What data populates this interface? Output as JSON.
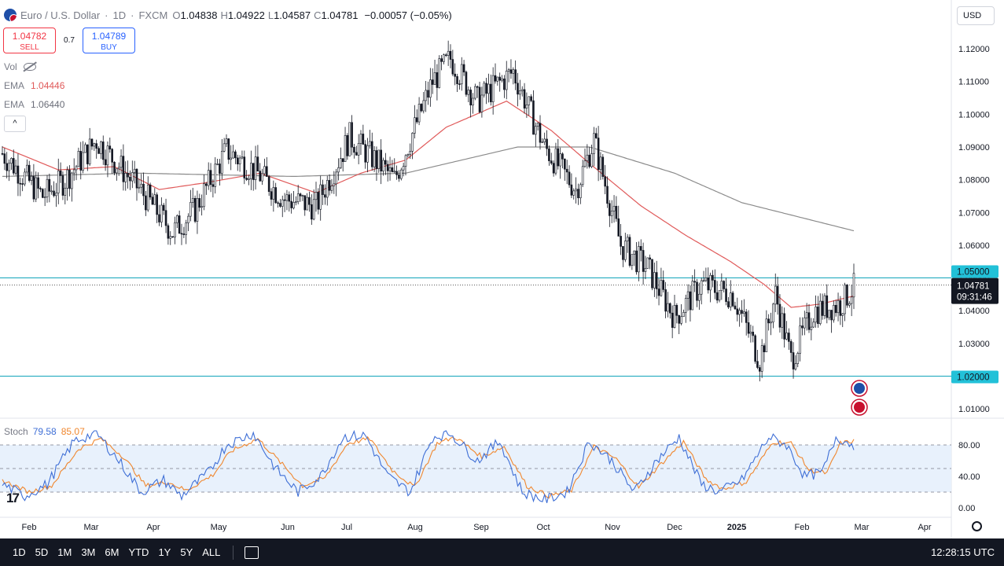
{
  "header": {
    "symbol": "Euro / U.S. Dollar",
    "interval": "1D",
    "exchange": "FXCM",
    "open_label": "O",
    "open": "1.04838",
    "high_label": "H",
    "high": "1.04922",
    "low_label": "L",
    "low": "1.04587",
    "close_label": "C",
    "close": "1.04781",
    "change": "−0.00057 (−0.05%)"
  },
  "trade": {
    "sell_price": "1.04782",
    "sell_label": "SELL",
    "spread": "0.7",
    "buy_price": "1.04789",
    "buy_label": "BUY"
  },
  "legend": {
    "vol_label": "Vol",
    "ema1_label": "EMA",
    "ema1_value": "1.04446",
    "ema2_label": "EMA",
    "ema2_value": "1.06440",
    "collapse_glyph": "^"
  },
  "currency_button": "USD",
  "stoch": {
    "label": "Stoch",
    "k_value": "79.58",
    "d_value": "85.07"
  },
  "price_tags": {
    "level_high": "1.05000",
    "last_price": "1.04781",
    "countdown": "09:31:46",
    "level_low": "1.02000"
  },
  "colors": {
    "ema_fast": "#e05a5a",
    "ema_slow": "#8a8a8a",
    "level_line": "#11a4ba",
    "stoch_k": "#3f6fd6",
    "stoch_d": "#f0872e",
    "candle": "#131722"
  },
  "bottom_bar": {
    "timeframes": [
      "1D",
      "5D",
      "1M",
      "3M",
      "6M",
      "YTD",
      "1Y",
      "5Y",
      "ALL"
    ],
    "clock": "12:28:15 UTC"
  },
  "logo_text": "17",
  "chart_data": {
    "type": "candlestick",
    "y_axis_ticks": [
      "1.12000",
      "1.11000",
      "1.10000",
      "1.09000",
      "1.08000",
      "1.07000",
      "1.06000",
      "1.05000",
      "1.04000",
      "1.03000",
      "1.02000",
      "1.01000"
    ],
    "ylim": [
      1.0055,
      1.1256
    ],
    "x_axis_ticks": [
      "Feb",
      "Mar",
      "Apr",
      "May",
      "Jun",
      "Jul",
      "Aug",
      "Sep",
      "Oct",
      "Nov",
      "Dec",
      "2025",
      "Feb",
      "Mar",
      "Apr"
    ],
    "horizontal_levels": [
      1.05,
      1.02
    ],
    "trend_path": [
      [
        0,
        1.088
      ],
      [
        18,
        1.075
      ],
      [
        28,
        1.08
      ],
      [
        42,
        1.092
      ],
      [
        55,
        1.082
      ],
      [
        65,
        1.074
      ],
      [
        76,
        1.064
      ],
      [
        86,
        1.071
      ],
      [
        100,
        1.089
      ],
      [
        114,
        1.082
      ],
      [
        126,
        1.074
      ],
      [
        140,
        1.072
      ],
      [
        155,
        1.093
      ],
      [
        168,
        1.085
      ],
      [
        175,
        1.08
      ],
      [
        192,
        1.11
      ],
      [
        200,
        1.117
      ],
      [
        212,
        1.104
      ],
      [
        228,
        1.113
      ],
      [
        242,
        1.09
      ],
      [
        256,
        1.077
      ],
      [
        264,
        1.092
      ],
      [
        276,
        1.06
      ],
      [
        288,
        1.053
      ],
      [
        300,
        1.038
      ],
      [
        312,
        1.048
      ],
      [
        326,
        1.045
      ],
      [
        338,
        1.025
      ],
      [
        345,
        1.045
      ],
      [
        352,
        1.025
      ],
      [
        362,
        1.04
      ],
      [
        374,
        1.042
      ],
      [
        380,
        1.047
      ]
    ],
    "ema_fast_path": [
      [
        0,
        1.09
      ],
      [
        25,
        1.083
      ],
      [
        50,
        1.084
      ],
      [
        70,
        1.077
      ],
      [
        90,
        1.079
      ],
      [
        115,
        1.082
      ],
      [
        140,
        1.076
      ],
      [
        160,
        1.082
      ],
      [
        180,
        1.086
      ],
      [
        198,
        1.096
      ],
      [
        225,
        1.104
      ],
      [
        245,
        1.095
      ],
      [
        262,
        1.085
      ],
      [
        285,
        1.072
      ],
      [
        305,
        1.063
      ],
      [
        325,
        1.055
      ],
      [
        340,
        1.048
      ],
      [
        352,
        1.041
      ],
      [
        365,
        1.042
      ],
      [
        380,
        1.0445
      ]
    ],
    "ema_slow_path": [
      [
        0,
        1.081
      ],
      [
        60,
        1.082
      ],
      [
        130,
        1.081
      ],
      [
        180,
        1.082
      ],
      [
        230,
        1.09
      ],
      [
        262,
        1.09
      ],
      [
        300,
        1.082
      ],
      [
        330,
        1.073
      ],
      [
        380,
        1.0644
      ]
    ],
    "stoch": {
      "levels": [
        80,
        50,
        20
      ],
      "ylim": [
        0,
        100
      ],
      "ticks": [
        "80.00",
        "40.00",
        "0.00"
      ],
      "k_path": [
        [
          0,
          30
        ],
        [
          10,
          15
        ],
        [
          20,
          30
        ],
        [
          32,
          85
        ],
        [
          42,
          95
        ],
        [
          52,
          60
        ],
        [
          62,
          20
        ],
        [
          72,
          35
        ],
        [
          80,
          15
        ],
        [
          92,
          45
        ],
        [
          100,
          80
        ],
        [
          112,
          95
        ],
        [
          122,
          50
        ],
        [
          132,
          20
        ],
        [
          142,
          40
        ],
        [
          152,
          90
        ],
        [
          162,
          92
        ],
        [
          172,
          40
        ],
        [
          182,
          20
        ],
        [
          192,
          90
        ],
        [
          200,
          95
        ],
        [
          212,
          60
        ],
        [
          222,
          85
        ],
        [
          232,
          20
        ],
        [
          242,
          10
        ],
        [
          252,
          20
        ],
        [
          262,
          85
        ],
        [
          272,
          60
        ],
        [
          282,
          20
        ],
        [
          292,
          60
        ],
        [
          302,
          90
        ],
        [
          312,
          30
        ],
        [
          320,
          20
        ],
        [
          330,
          35
        ],
        [
          342,
          90
        ],
        [
          350,
          80
        ],
        [
          358,
          40
        ],
        [
          366,
          45
        ],
        [
          372,
          90
        ],
        [
          380,
          80
        ]
      ],
      "d_path": [
        [
          0,
          35
        ],
        [
          12,
          20
        ],
        [
          22,
          28
        ],
        [
          34,
          75
        ],
        [
          44,
          88
        ],
        [
          54,
          65
        ],
        [
          64,
          28
        ],
        [
          74,
          33
        ],
        [
          82,
          22
        ],
        [
          94,
          42
        ],
        [
          102,
          72
        ],
        [
          114,
          88
        ],
        [
          124,
          58
        ],
        [
          134,
          28
        ],
        [
          144,
          38
        ],
        [
          154,
          82
        ],
        [
          164,
          88
        ],
        [
          174,
          48
        ],
        [
          184,
          26
        ],
        [
          194,
          82
        ],
        [
          202,
          90
        ],
        [
          214,
          65
        ],
        [
          224,
          78
        ],
        [
          234,
          28
        ],
        [
          244,
          15
        ],
        [
          254,
          22
        ],
        [
          264,
          78
        ],
        [
          274,
          62
        ],
        [
          284,
          26
        ],
        [
          294,
          56
        ],
        [
          304,
          84
        ],
        [
          314,
          36
        ],
        [
          322,
          24
        ],
        [
          332,
          33
        ],
        [
          344,
          84
        ],
        [
          352,
          82
        ],
        [
          360,
          48
        ],
        [
          368,
          44
        ],
        [
          374,
          82
        ],
        [
          380,
          85
        ]
      ]
    }
  }
}
